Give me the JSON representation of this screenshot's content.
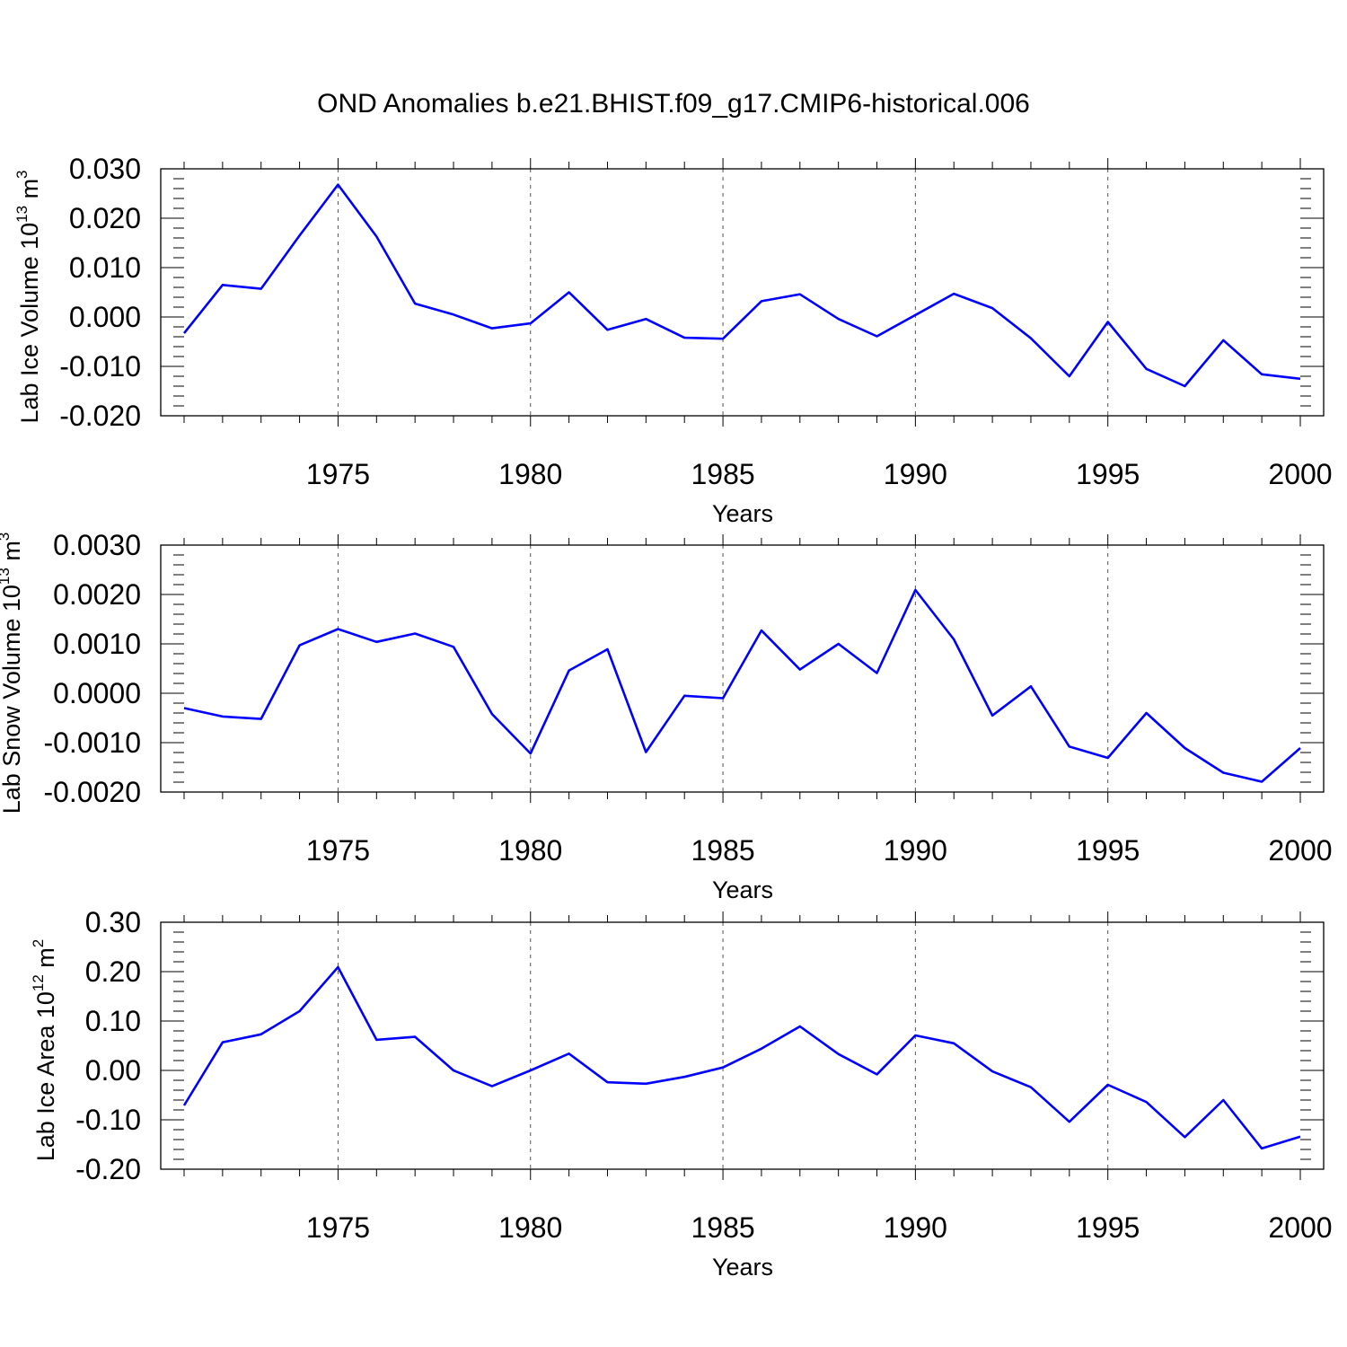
{
  "title": "OND Anomalies b.e21.BHIST.f09_g17.CMIP6-historical.006",
  "chart_data": [
    {
      "type": "line",
      "ylabel": {
        "text": "Lab Ice Volume 10",
        "sup": "13",
        "unit": " m",
        "unit_sup": "3"
      },
      "xlabel": "Years",
      "xlim": [
        1971,
        2000
      ],
      "ylim": [
        -0.02,
        0.03
      ],
      "y_ticks": [
        -0.02,
        -0.01,
        0.0,
        0.01,
        0.02,
        0.03
      ],
      "y_tick_labels": [
        "-0.020",
        "-0.010",
        "0.000",
        "0.010",
        "0.020",
        "0.030"
      ],
      "x_ticks": [
        1975,
        1980,
        1985,
        1990,
        1995,
        2000
      ],
      "x_tick_labels": [
        "1975",
        "1980",
        "1985",
        "1990",
        "1995",
        "2000"
      ],
      "grid": "vertical dashed lines at labelled years",
      "series": [
        {
          "color": "#0000ff",
          "x": [
            1971,
            1972,
            1973,
            1974,
            1975,
            1976,
            1977,
            1978,
            1979,
            1980,
            1981,
            1982,
            1983,
            1984,
            1985,
            1986,
            1987,
            1988,
            1989,
            1990,
            1991,
            1992,
            1993,
            1994,
            1995,
            1996,
            1997,
            1998,
            1999,
            2000
          ],
          "values": [
            -0.0033,
            0.0065,
            0.0057,
            0.0165,
            0.0268,
            0.0163,
            0.0027,
            0.0005,
            -0.0023,
            -0.0013,
            0.005,
            -0.0026,
            -0.0004,
            -0.0042,
            -0.0044,
            0.0032,
            0.0046,
            -0.0004,
            -0.0039,
            0.0004,
            0.0047,
            0.0018,
            -0.0043,
            -0.012,
            -0.001,
            -0.0105,
            -0.014,
            -0.0047,
            -0.0116,
            -0.0125
          ]
        }
      ]
    },
    {
      "type": "line",
      "ylabel": {
        "text": "Lab Snow Volume 10",
        "sup": "13",
        "unit": " m",
        "unit_sup": "3"
      },
      "xlabel": "Years",
      "xlim": [
        1971,
        2000
      ],
      "ylim": [
        -0.002,
        0.003
      ],
      "y_ticks": [
        -0.002,
        -0.001,
        0.0,
        0.001,
        0.002,
        0.003
      ],
      "y_tick_labels": [
        "-0.0020",
        "-0.0010",
        "0.0000",
        "0.0010",
        "0.0020",
        "0.0030"
      ],
      "x_ticks": [
        1975,
        1980,
        1985,
        1990,
        1995,
        2000
      ],
      "x_tick_labels": [
        "1975",
        "1980",
        "1985",
        "1990",
        "1995",
        "2000"
      ],
      "grid": "vertical dashed lines at labelled years",
      "series": [
        {
          "color": "#0000ff",
          "x": [
            1971,
            1972,
            1973,
            1974,
            1975,
            1976,
            1977,
            1978,
            1979,
            1980,
            1981,
            1982,
            1983,
            1984,
            1985,
            1986,
            1987,
            1988,
            1989,
            1990,
            1991,
            1992,
            1993,
            1994,
            1995,
            1996,
            1997,
            1998,
            1999,
            2000
          ],
          "values": [
            -0.0003,
            -0.00047,
            -0.00052,
            0.00097,
            0.0013,
            0.00104,
            0.00121,
            0.00094,
            -0.00042,
            -0.00122,
            0.00046,
            0.00089,
            -0.00119,
            -5e-05,
            -0.0001,
            0.00127,
            0.00048,
            0.001,
            0.00041,
            0.00209,
            0.00109,
            -0.00045,
            0.00014,
            -0.00108,
            -0.00131,
            -0.0004,
            -0.00111,
            -0.00161,
            -0.00179,
            -0.00111
          ]
        }
      ]
    },
    {
      "type": "line",
      "ylabel": {
        "text": "Lab Ice Area 10",
        "sup": "12",
        "unit": " m",
        "unit_sup": "2"
      },
      "xlabel": "Years",
      "xlim": [
        1971,
        2000
      ],
      "ylim": [
        -0.2,
        0.3
      ],
      "y_ticks": [
        -0.2,
        -0.1,
        0.0,
        0.1,
        0.2,
        0.3
      ],
      "y_tick_labels": [
        "-0.20",
        "-0.10",
        "0.00",
        "0.10",
        "0.20",
        "0.30"
      ],
      "x_ticks": [
        1975,
        1980,
        1985,
        1990,
        1995,
        2000
      ],
      "x_tick_labels": [
        "1975",
        "1980",
        "1985",
        "1990",
        "1995",
        "2000"
      ],
      "grid": "vertical dashed lines at labelled years",
      "series": [
        {
          "color": "#0000ff",
          "x": [
            1971,
            1972,
            1973,
            1974,
            1975,
            1976,
            1977,
            1978,
            1979,
            1980,
            1981,
            1982,
            1983,
            1984,
            1985,
            1986,
            1987,
            1988,
            1989,
            1990,
            1991,
            1992,
            1993,
            1994,
            1995,
            1996,
            1997,
            1998,
            1999,
            2000
          ],
          "values": [
            -0.071,
            0.057,
            0.073,
            0.12,
            0.209,
            0.062,
            0.068,
            0.0,
            -0.032,
            0.0,
            0.034,
            -0.024,
            -0.027,
            -0.013,
            0.006,
            0.044,
            0.089,
            0.033,
            -0.008,
            0.071,
            0.055,
            -0.002,
            -0.034,
            -0.104,
            -0.029,
            -0.064,
            -0.135,
            -0.06,
            -0.158,
            -0.134
          ]
        }
      ]
    }
  ]
}
